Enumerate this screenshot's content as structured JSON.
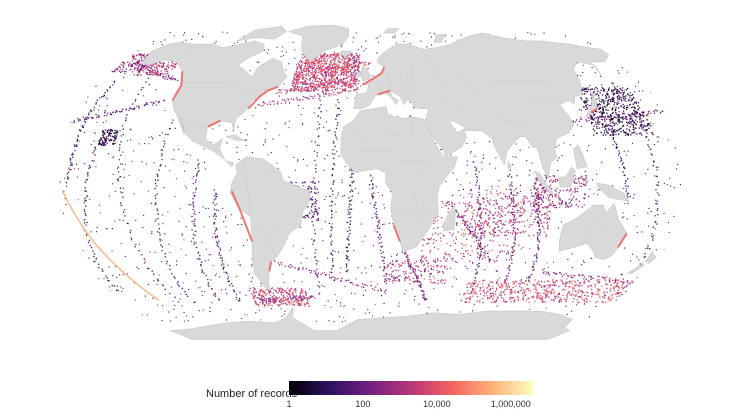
{
  "legend": {
    "title": "Number of records",
    "ticks": [
      {
        "label": "1",
        "value": 1
      },
      {
        "label": "100",
        "value": 100
      },
      {
        "label": "10,000",
        "value": 10000
      },
      {
        "label": "1,000,000",
        "value": 1000000
      }
    ],
    "scale": "log",
    "range": [
      1,
      4000000
    ],
    "palette": [
      "#000004",
      "#2c115f",
      "#721f81",
      "#b73779",
      "#f1605d",
      "#feb078",
      "#fcfdbf"
    ]
  },
  "map": {
    "projection": "robinson",
    "ocean_color": "#ffffff",
    "land_color": "#d9d9d9",
    "border_color": "#b8b8b8"
  }
}
